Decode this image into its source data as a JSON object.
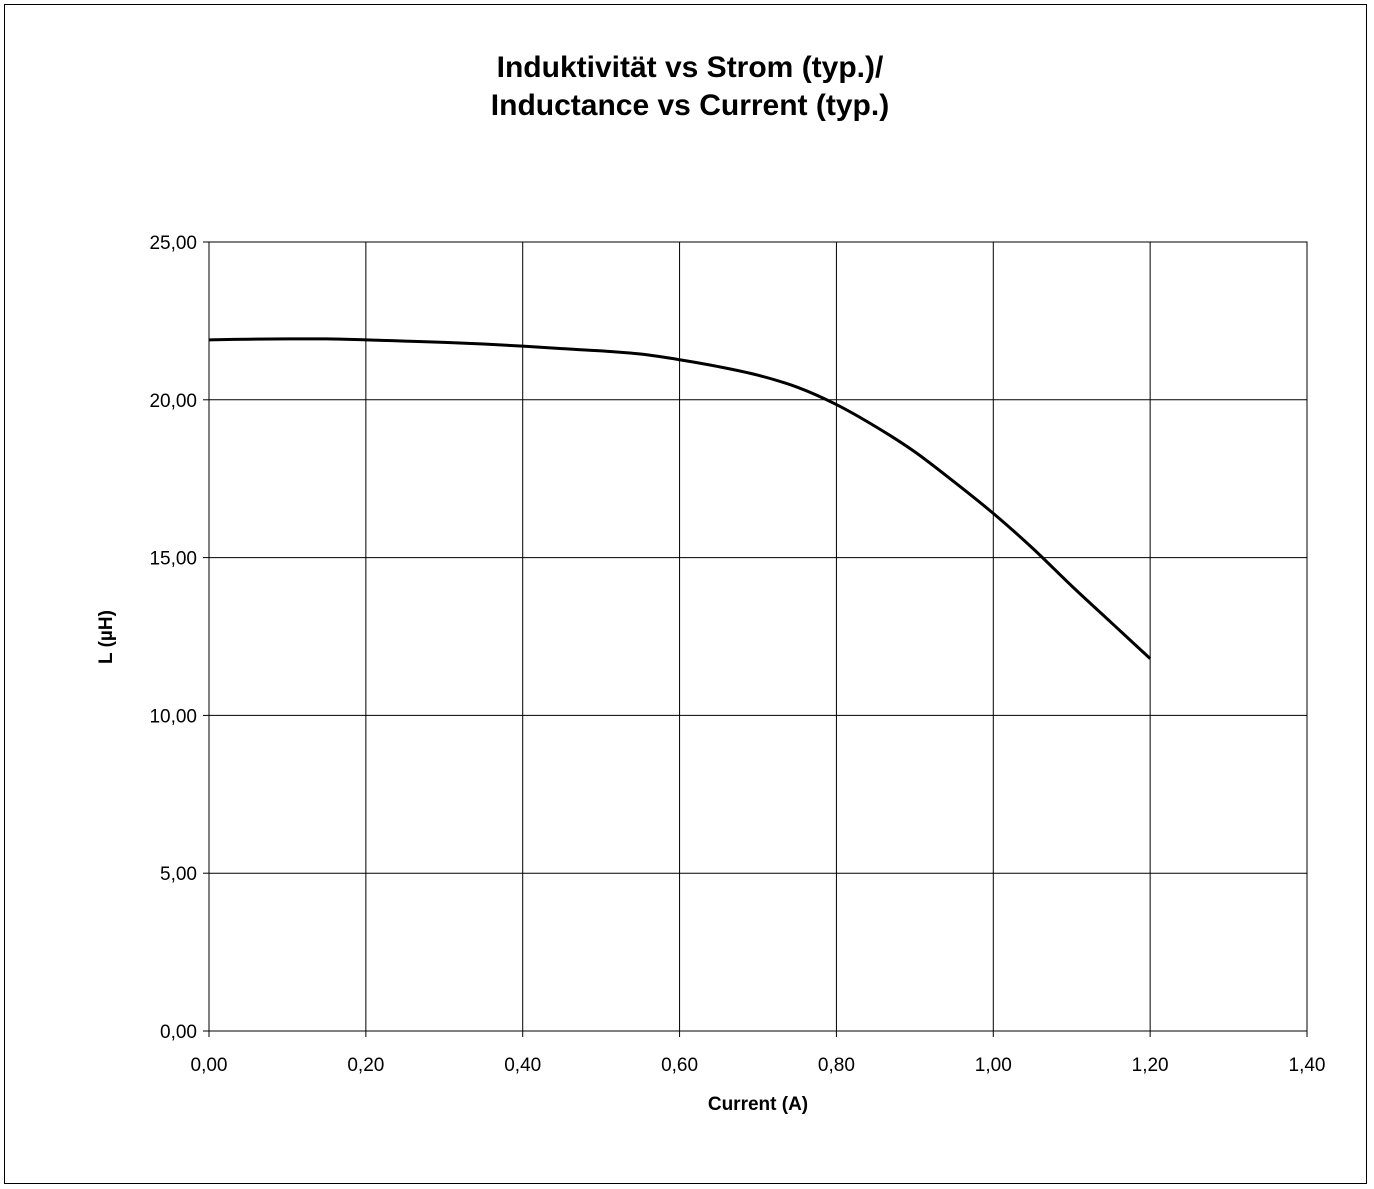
{
  "chart_data": {
    "type": "line",
    "title_lines": [
      "Induktivität vs Strom (typ.)/",
      "Inductance vs Current (typ.)"
    ],
    "xlabel": "Current (A)",
    "ylabel": "L (µH)",
    "xlim": [
      0,
      1.4
    ],
    "ylim": [
      0,
      25
    ],
    "x_tick_labels": [
      "0,00",
      "0,20",
      "0,40",
      "0,60",
      "0,80",
      "1,00",
      "1,20",
      "1,40"
    ],
    "y_tick_labels": [
      "0,00",
      "5,00",
      "10,00",
      "15,00",
      "20,00",
      "25,00"
    ],
    "grid": true,
    "legend": "none",
    "line_color": "#000000",
    "series": [
      {
        "x": [
          0.0,
          0.05,
          0.1,
          0.15,
          0.2,
          0.25,
          0.3,
          0.35,
          0.4,
          0.45,
          0.5,
          0.55,
          0.6,
          0.65,
          0.7,
          0.75,
          0.8,
          0.85,
          0.9,
          0.95,
          1.0,
          1.05,
          1.1,
          1.15,
          1.2
        ],
        "y": [
          21.9,
          21.92,
          21.93,
          21.93,
          21.9,
          21.86,
          21.82,
          21.77,
          21.7,
          21.62,
          21.55,
          21.45,
          21.27,
          21.05,
          20.78,
          20.4,
          19.85,
          19.15,
          18.35,
          17.4,
          16.4,
          15.3,
          14.1,
          12.95,
          11.8
        ]
      }
    ]
  }
}
